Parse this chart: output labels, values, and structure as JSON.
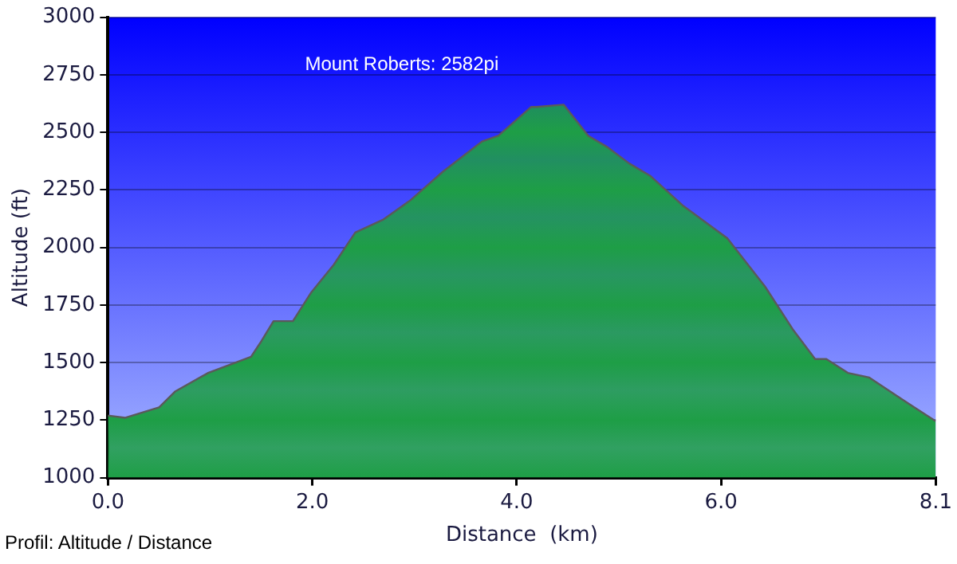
{
  "chart_data": {
    "type": "area",
    "xlabel": "Distance  (km)",
    "ylabel": "Altitude (ft)",
    "x": [
      0,
      0.17,
      0.5,
      0.66,
      0.98,
      1.4,
      1.49,
      1.62,
      1.81,
      1.99,
      2.21,
      2.42,
      2.69,
      2.96,
      3.28,
      3.66,
      3.82,
      4.14,
      4.19,
      4.46,
      4.7,
      4.89,
      5.1,
      5.31,
      5.63,
      6.06,
      6.43,
      6.7,
      6.92,
      7.03,
      7.24,
      7.45,
      7.77,
      8.1
    ],
    "series": [
      {
        "color": "#1e9e46",
        "values": [
          1270,
          1260,
          1305,
          1375,
          1455,
          1525,
          1585,
          1680,
          1680,
          1805,
          1925,
          2065,
          2120,
          2205,
          2330,
          2460,
          2485,
          2610,
          2610,
          2620,
          2485,
          2435,
          2365,
          2310,
          2180,
          2040,
          1830,
          1645,
          1515,
          1515,
          1455,
          1435,
          1340,
          1245
        ]
      }
    ],
    "xlim": [
      0,
      8.1
    ],
    "xticks": [
      {
        "value": 0,
        "label": "0.0"
      },
      {
        "value": 2,
        "label": "2.0"
      },
      {
        "value": 4,
        "label": "4.0"
      },
      {
        "value": 6,
        "label": "6.0"
      },
      {
        "value": 8.1,
        "label": "8.1"
      }
    ],
    "ylim": [
      1000,
      3000
    ],
    "yticks": [
      1000,
      1250,
      1500,
      1750,
      2000,
      2250,
      2500,
      2750,
      3000
    ],
    "grid": "y",
    "legend": false,
    "annotations": [
      "Mount Roberts: 2582pi",
      "Profil: Altitude / Distance"
    ]
  }
}
